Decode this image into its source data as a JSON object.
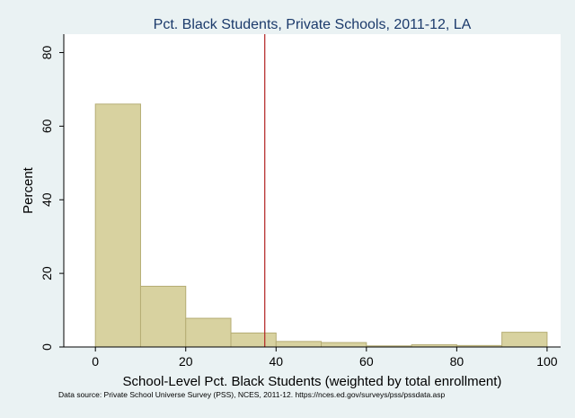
{
  "chart_data": {
    "type": "bar",
    "title": "Pct. Black Students, Private Schools, 2011-12, LA",
    "xlabel": "School-Level Pct. Black Students (weighted by total enrollment)",
    "ylabel": "Percent",
    "note": "Data source: Private School Universe Survey (PSS), NCES, 2011-12. https://nces.ed.gov/surveys/pss/pssdata.asp",
    "bins": [
      {
        "x0": 0,
        "x1": 10,
        "value": 66
      },
      {
        "x0": 10,
        "x1": 20,
        "value": 16.5
      },
      {
        "x0": 20,
        "x1": 30,
        "value": 7.8
      },
      {
        "x0": 30,
        "x1": 40,
        "value": 3.8
      },
      {
        "x0": 40,
        "x1": 50,
        "value": 1.5
      },
      {
        "x0": 50,
        "x1": 60,
        "value": 1.2
      },
      {
        "x0": 60,
        "x1": 70,
        "value": 0.3
      },
      {
        "x0": 70,
        "x1": 80,
        "value": 0.6
      },
      {
        "x0": 80,
        "x1": 90,
        "value": 0.4
      },
      {
        "x0": 90,
        "x1": 100,
        "value": 4.0
      }
    ],
    "reference_line": {
      "x": 37.5,
      "color": "#b22222"
    },
    "xlim": [
      -7,
      103
    ],
    "ylim": [
      0,
      85
    ],
    "xticks": [
      0,
      20,
      40,
      60,
      80,
      100
    ],
    "yticks": [
      0,
      20,
      40,
      60,
      80
    ],
    "bar_fill": "#d8d2a0",
    "bar_stroke": "#b5ad74",
    "plot_background": "#ffffff",
    "page_background": "#eaf2f3",
    "grid": false,
    "legend": "none"
  }
}
